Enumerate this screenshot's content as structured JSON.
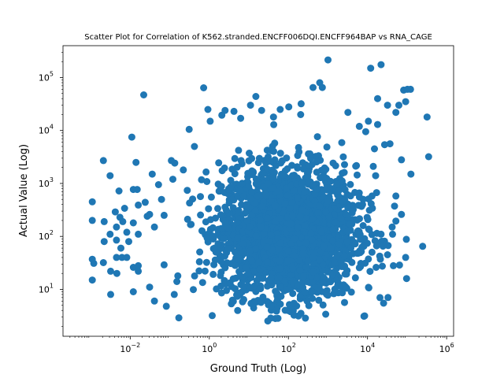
{
  "chart_data": {
    "type": "scatter",
    "title": "Scatter Plot for Correlation of K562.stranded.ENCFF006DQI.ENCFF964BAP vs RNA_CAGE",
    "xlabel": "Ground Truth (Log)",
    "ylabel": "Actual Value (Log)",
    "xscale": "log",
    "yscale": "log",
    "xlim": [
      0.0002,
      1500000
    ],
    "ylim": [
      1.3,
      400000
    ],
    "x_ticks": [
      {
        "value": 0.01,
        "base": "10",
        "exp": "−2"
      },
      {
        "value": 1,
        "base": "10",
        "exp": "0"
      },
      {
        "value": 100,
        "base": "10",
        "exp": "2"
      },
      {
        "value": 10000,
        "base": "10",
        "exp": "4"
      },
      {
        "value": 1000000,
        "base": "10",
        "exp": "6"
      }
    ],
    "y_ticks": [
      {
        "value": 10,
        "base": "10",
        "exp": "1"
      },
      {
        "value": 100,
        "base": "10",
        "exp": "2"
      },
      {
        "value": 1000,
        "base": "10",
        "exp": "3"
      },
      {
        "value": 10000,
        "base": "10",
        "exp": "4"
      },
      {
        "value": 100000,
        "base": "10",
        "exp": "5"
      }
    ],
    "marker_color": "#1f77b4",
    "grid": false,
    "points": [
      {
        "x": 0.0011,
        "y": 450
      },
      {
        "x": 0.0011,
        "y": 200
      },
      {
        "x": 0.0011,
        "y": 37
      },
      {
        "x": 0.0012,
        "y": 31
      },
      {
        "x": 0.0011,
        "y": 15
      },
      {
        "x": 0.0021,
        "y": 2700
      },
      {
        "x": 0.0022,
        "y": 190
      },
      {
        "x": 0.0022,
        "y": 80
      },
      {
        "x": 0.0021,
        "y": 32
      },
      {
        "x": 0.0031,
        "y": 1400
      },
      {
        "x": 0.0031,
        "y": 110
      },
      {
        "x": 0.0032,
        "y": 22
      },
      {
        "x": 0.0032,
        "y": 8
      },
      {
        "x": 0.0042,
        "y": 290
      },
      {
        "x": 0.0045,
        "y": 150
      },
      {
        "x": 0.0045,
        "y": 85
      },
      {
        "x": 0.0045,
        "y": 40
      },
      {
        "x": 0.0046,
        "y": 20
      },
      {
        "x": 0.0052,
        "y": 720
      },
      {
        "x": 0.0055,
        "y": 230
      },
      {
        "x": 0.0058,
        "y": 60
      },
      {
        "x": 0.0062,
        "y": 40
      },
      {
        "x": 0.0065,
        "y": 190
      },
      {
        "x": 0.0072,
        "y": 340
      },
      {
        "x": 0.0082,
        "y": 120
      },
      {
        "x": 0.0082,
        "y": 40
      },
      {
        "x": 0.0092,
        "y": 80
      },
      {
        "x": 0.011,
        "y": 7500
      },
      {
        "x": 0.012,
        "y": 770
      },
      {
        "x": 0.012,
        "y": 180
      },
      {
        "x": 0.012,
        "y": 26
      },
      {
        "x": 0.012,
        "y": 9
      },
      {
        "x": 0.014,
        "y": 2500
      },
      {
        "x": 0.015,
        "y": 770
      },
      {
        "x": 0.016,
        "y": 390
      },
      {
        "x": 0.016,
        "y": 110
      },
      {
        "x": 0.016,
        "y": 28
      },
      {
        "x": 0.016,
        "y": 22
      },
      {
        "x": 0.022,
        "y": 47000
      },
      {
        "x": 0.024,
        "y": 440
      },
      {
        "x": 0.027,
        "y": 240
      },
      {
        "x": 0.031,
        "y": 260
      },
      {
        "x": 0.031,
        "y": 11
      },
      {
        "x": 0.036,
        "y": 1500
      },
      {
        "x": 0.041,
        "y": 150
      },
      {
        "x": 0.041,
        "y": 6
      },
      {
        "x": 0.052,
        "y": 950
      },
      {
        "x": 0.062,
        "y": 500
      },
      {
        "x": 0.072,
        "y": 250
      },
      {
        "x": 0.072,
        "y": 29
      },
      {
        "x": 0.082,
        "y": 4.8
      },
      {
        "x": 0.11,
        "y": 2700
      },
      {
        "x": 0.12,
        "y": 1200
      },
      {
        "x": 0.13,
        "y": 8
      },
      {
        "x": 0.16,
        "y": 18
      },
      {
        "x": 0.17,
        "y": 2.9
      },
      {
        "x": 0.22,
        "y": 1800
      },
      {
        "x": 0.31,
        "y": 10500
      },
      {
        "x": 0.42,
        "y": 5000
      },
      {
        "x": 0.72,
        "y": 64000
      },
      {
        "x": 0.92,
        "y": 25000
      },
      {
        "x": 1.05,
        "y": 15000
      },
      {
        "x": 2.5,
        "y": 24000
      },
      {
        "x": 4.2,
        "y": 23000
      },
      {
        "x": 6.2,
        "y": 17000
      },
      {
        "x": 11,
        "y": 30000
      },
      {
        "x": 15,
        "y": 44000
      },
      {
        "x": 21,
        "y": 24000
      },
      {
        "x": 42,
        "y": 18000
      },
      {
        "x": 62,
        "y": 25000
      },
      {
        "x": 102,
        "y": 28000
      },
      {
        "x": 210,
        "y": 32000
      },
      {
        "x": 420,
        "y": 65000
      },
      {
        "x": 620,
        "y": 80000
      },
      {
        "x": 720,
        "y": 65000
      },
      {
        "x": 1000,
        "y": 215000
      },
      {
        "x": 3200,
        "y": 22000
      },
      {
        "x": 6200,
        "y": 12000
      },
      {
        "x": 10500,
        "y": 15000
      },
      {
        "x": 12000,
        "y": 150000
      },
      {
        "x": 22000,
        "y": 175000
      },
      {
        "x": 18000,
        "y": 40000
      },
      {
        "x": 32000,
        "y": 30000
      },
      {
        "x": 52000,
        "y": 22000
      },
      {
        "x": 62000,
        "y": 30000
      },
      {
        "x": 82000,
        "y": 58000
      },
      {
        "x": 102000,
        "y": 60000
      },
      {
        "x": 122000,
        "y": 60000
      },
      {
        "x": 92000,
        "y": 35000
      },
      {
        "x": 320000,
        "y": 18000
      },
      {
        "x": 350000,
        "y": 3200
      },
      {
        "x": 125000,
        "y": 1500
      },
      {
        "x": 72000,
        "y": 2800
      },
      {
        "x": 52000,
        "y": 580
      },
      {
        "x": 72000,
        "y": 260
      },
      {
        "x": 52000,
        "y": 195
      },
      {
        "x": 96000,
        "y": 88
      },
      {
        "x": 92000,
        "y": 40
      },
      {
        "x": 97000,
        "y": 16
      },
      {
        "x": 248000,
        "y": 65
      },
      {
        "x": 33000,
        "y": 7
      },
      {
        "x": 22000,
        "y": 110
      },
      {
        "x": 42000,
        "y": 150
      },
      {
        "x": 32000,
        "y": 45
      },
      {
        "x": 43000,
        "y": 110
      },
      {
        "x": 45000,
        "y": 28
      },
      {
        "x": 37000,
        "y": 5600
      },
      {
        "x": 27000,
        "y": 5400
      },
      {
        "x": 16000,
        "y": 1400
      },
      {
        "x": 13000,
        "y": 580
      },
      {
        "x": 15000,
        "y": 4500
      },
      {
        "x": 14000,
        "y": 2100
      },
      {
        "x": 18000,
        "y": 13000
      },
      {
        "x": 9000,
        "y": 9500
      }
    ],
    "dense_cloud": {
      "center_x": 100,
      "center_y": 120,
      "spread_x_log10": 0.85,
      "spread_y_log10": 0.62,
      "count": 2600
    }
  }
}
